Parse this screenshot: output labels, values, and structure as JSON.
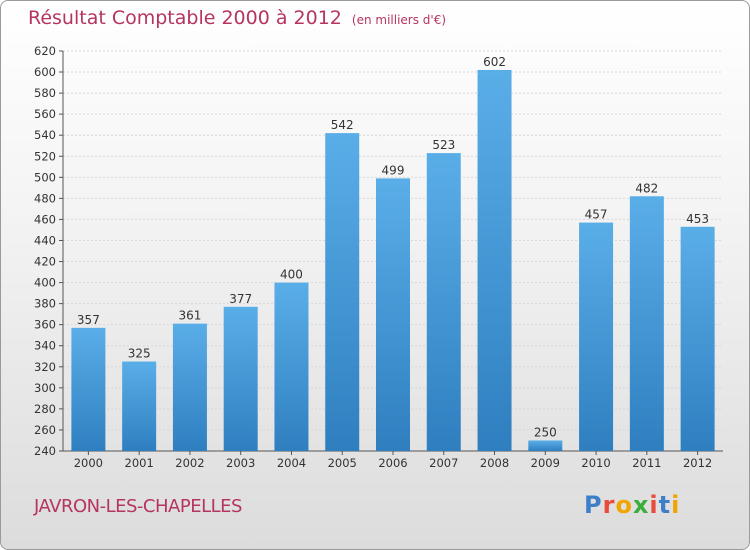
{
  "chart_data": {
    "type": "bar",
    "title": "Résultat Comptable 2000 à 2012",
    "subtitle": "(en milliers d'€)",
    "categories": [
      "2000",
      "2001",
      "2002",
      "2003",
      "2004",
      "2005",
      "2006",
      "2007",
      "2008",
      "2009",
      "2010",
      "2011",
      "2012"
    ],
    "values": [
      357,
      325,
      361,
      377,
      400,
      542,
      499,
      523,
      602,
      250,
      457,
      482,
      453
    ],
    "ylim": [
      240,
      620
    ],
    "ytick_step": 20,
    "xlabel": "",
    "ylabel": "",
    "grid": true,
    "bar_color": "#4a9fd9"
  },
  "place_name": "JAVRON-LES-CHAPELLES",
  "logo": {
    "letters": [
      "P",
      "r",
      "o",
      "x",
      "i",
      "t",
      "i"
    ],
    "colors": [
      "#3d7fc9",
      "#e84c3d",
      "#f0a500",
      "#3cae3c",
      "#e84c3d",
      "#3d7fc9",
      "#f0a500"
    ]
  }
}
